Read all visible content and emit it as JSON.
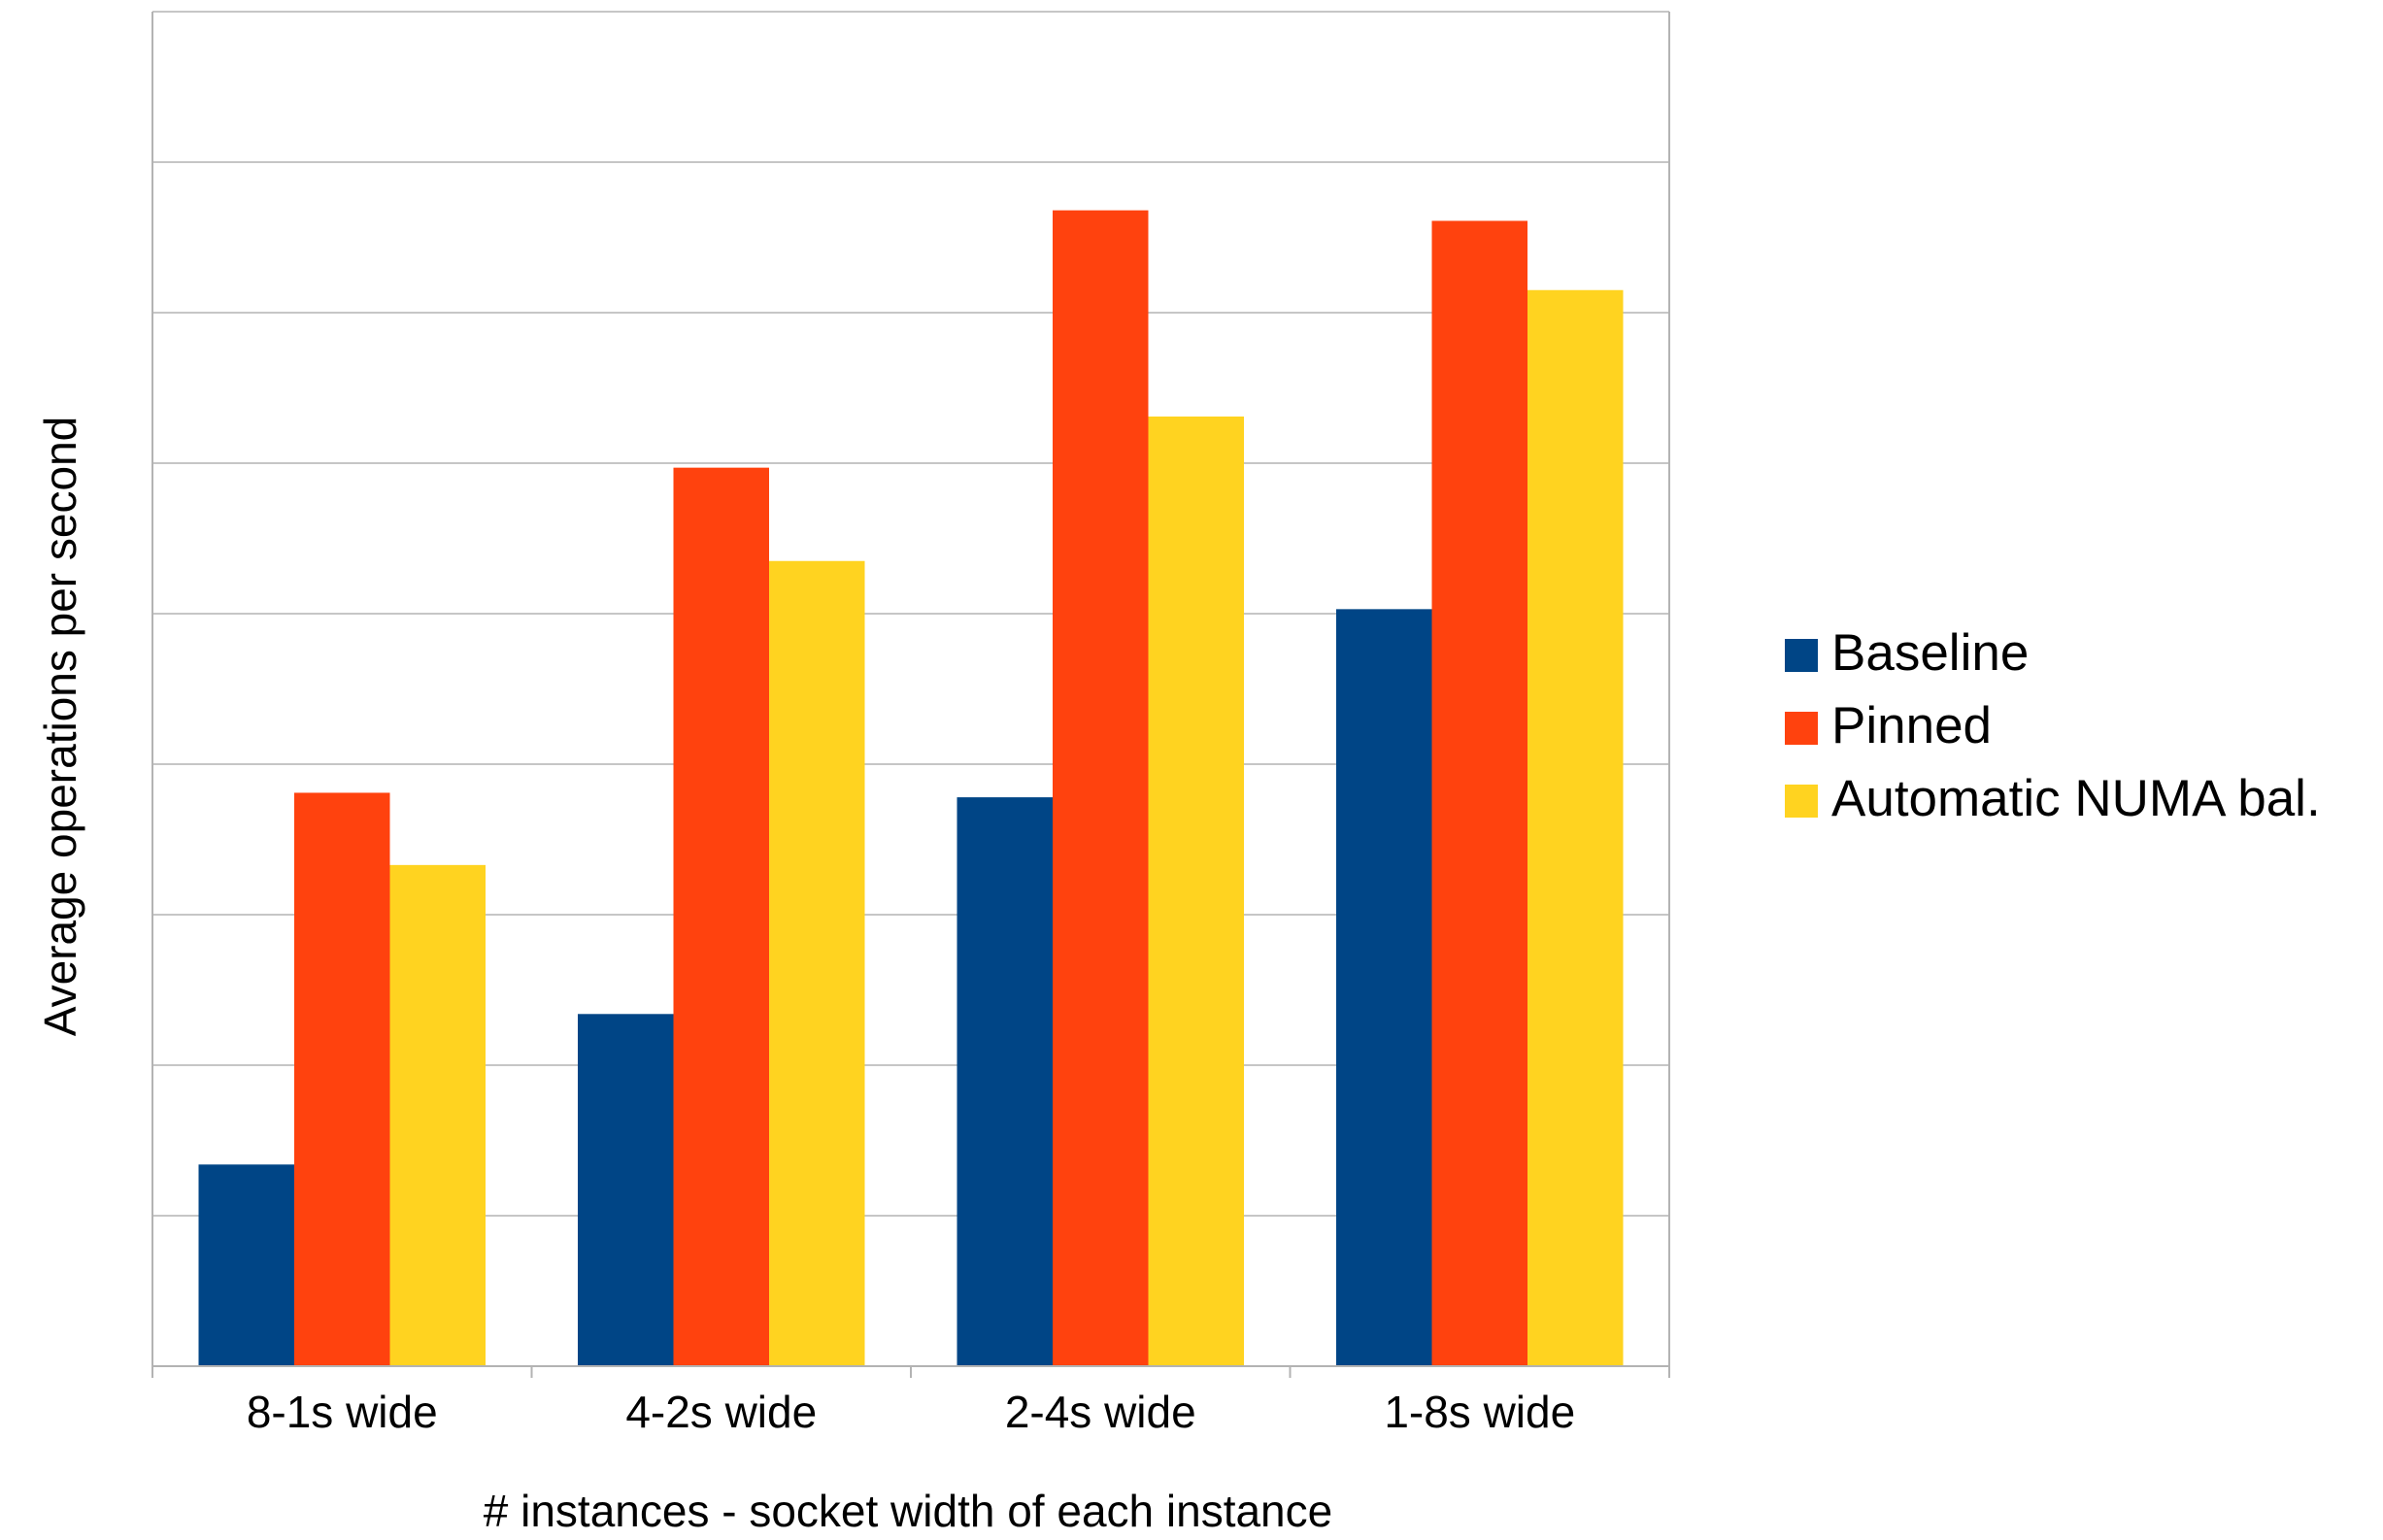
{
  "chart_data": {
    "type": "bar",
    "title": "",
    "xlabel": "# instances - socket width of each instance",
    "ylabel": "Average operations per second",
    "categories": [
      "8-1s wide",
      "4-2s wide",
      "2-4s wide",
      "1-8s wide"
    ],
    "ylim": [
      0,
      9
    ],
    "y_tick_labels_shown": false,
    "grid": true,
    "legend_position": "right",
    "series": [
      {
        "name": "Baseline",
        "color": "#004586",
        "values": [
          1.34,
          2.34,
          3.78,
          5.03
        ]
      },
      {
        "name": "Pinned",
        "color": "#ff420e",
        "values": [
          3.81,
          5.97,
          7.68,
          7.61
        ]
      },
      {
        "name": "Automatic NUMA bal.",
        "color": "#ffd320",
        "values": [
          3.33,
          5.35,
          6.31,
          7.15
        ]
      }
    ]
  }
}
